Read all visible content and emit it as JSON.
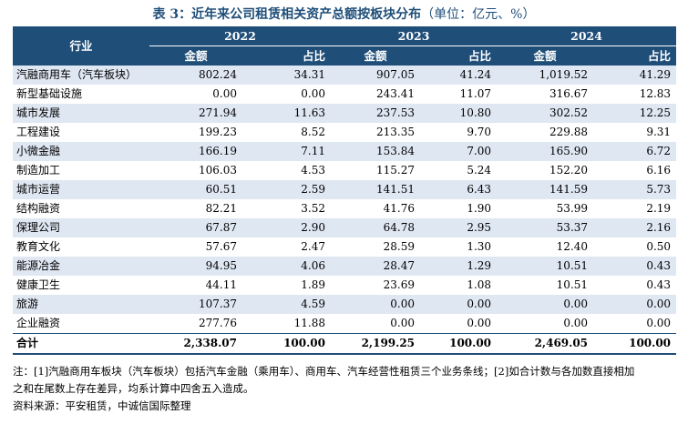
{
  "title": {
    "main": "表 3：近年来公司租赁相关资产总额按板块分布",
    "unit": "（单位：亿元、%）"
  },
  "table": {
    "industry_header": "行业",
    "years": [
      "2022",
      "2023",
      "2024"
    ],
    "sub_headers": [
      "金额",
      "占比"
    ],
    "rows": [
      {
        "name": "汽融商用车（汽车板块）",
        "v": [
          "802.24",
          "34.31",
          "907.05",
          "41.24",
          "1,019.52",
          "41.29"
        ]
      },
      {
        "name": "新型基础设施",
        "v": [
          "0.00",
          "0.00",
          "243.41",
          "11.07",
          "316.67",
          "12.83"
        ]
      },
      {
        "name": "城市发展",
        "v": [
          "271.94",
          "11.63",
          "237.53",
          "10.80",
          "302.52",
          "12.25"
        ]
      },
      {
        "name": "工程建设",
        "v": [
          "199.23",
          "8.52",
          "213.35",
          "9.70",
          "229.88",
          "9.31"
        ]
      },
      {
        "name": "小微金融",
        "v": [
          "166.19",
          "7.11",
          "153.84",
          "7.00",
          "165.90",
          "6.72"
        ]
      },
      {
        "name": "制造加工",
        "v": [
          "106.03",
          "4.53",
          "115.27",
          "5.24",
          "152.20",
          "6.16"
        ]
      },
      {
        "name": "城市运营",
        "v": [
          "60.51",
          "2.59",
          "141.51",
          "6.43",
          "141.59",
          "5.73"
        ]
      },
      {
        "name": "结构融资",
        "v": [
          "82.21",
          "3.52",
          "41.76",
          "1.90",
          "53.99",
          "2.19"
        ]
      },
      {
        "name": "保理公司",
        "v": [
          "67.87",
          "2.90",
          "64.78",
          "2.95",
          "53.37",
          "2.16"
        ]
      },
      {
        "name": "教育文化",
        "v": [
          "57.67",
          "2.47",
          "28.59",
          "1.30",
          "12.40",
          "0.50"
        ]
      },
      {
        "name": "能源冶金",
        "v": [
          "94.95",
          "4.06",
          "28.47",
          "1.29",
          "10.51",
          "0.43"
        ]
      },
      {
        "name": "健康卫生",
        "v": [
          "44.11",
          "1.89",
          "23.69",
          "1.08",
          "10.51",
          "0.43"
        ]
      },
      {
        "name": "旅游",
        "v": [
          "107.37",
          "4.59",
          "0.00",
          "0.00",
          "0.00",
          "0.00"
        ]
      },
      {
        "name": "企业融资",
        "v": [
          "277.76",
          "11.88",
          "0.00",
          "0.00",
          "0.00",
          "0.00"
        ]
      }
    ],
    "total": {
      "name": "合计",
      "v": [
        "2,338.07",
        "100.00",
        "2,199.25",
        "100.00",
        "2,469.05",
        "100.00"
      ]
    }
  },
  "notes": {
    "line1": "注：[1]汽融商用车板块（汽车板块）包括汽车金融（乘用车）、商用车、汽车经营性租赁三个业务条线；[2]如合计数与各加数直接相加",
    "line2": "之和在尾数上存在差异，均系计算中四舍五入造成。",
    "source": "资料来源：平安租赁，中诚信国际整理"
  }
}
